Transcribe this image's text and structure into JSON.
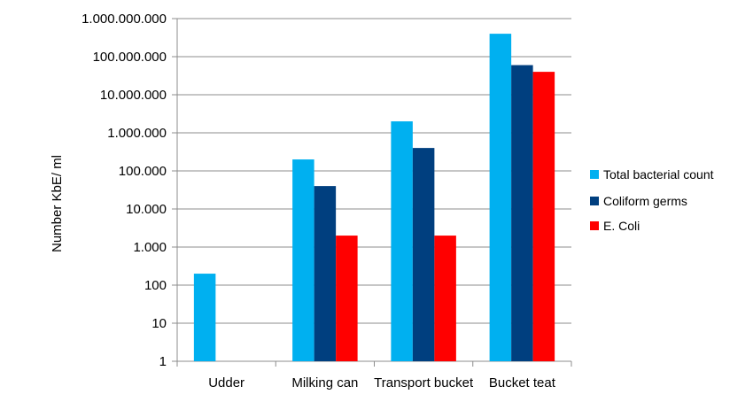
{
  "chart_data": {
    "type": "bar",
    "ylabel": "Number KbE/ ml",
    "yscale": "log",
    "ylim": [
      1,
      1000000000
    ],
    "grid": true,
    "legend_position": "right",
    "yticks": [
      1,
      10,
      100,
      1000,
      10000,
      100000,
      1000000,
      10000000,
      100000000,
      1000000000
    ],
    "ytick_labels": [
      "1",
      "10",
      "100",
      "1.000",
      "10.000",
      "100.000",
      "1.000.000",
      "10.000.000",
      "100.000.000",
      "1.000.000.000"
    ],
    "categories": [
      "Udder",
      "Milking can",
      "Transport bucket",
      "Bucket teat"
    ],
    "series": [
      {
        "name": "Total bacterial count",
        "color": "#00b0f0",
        "values": [
          200,
          200000,
          2000000,
          400000000
        ]
      },
      {
        "name": "Coliform germs",
        "color": "#003f7f",
        "values": [
          null,
          40000,
          400000,
          60000000
        ]
      },
      {
        "name": "E. Coli",
        "color": "#ff0000",
        "values": [
          null,
          2000,
          2000,
          40000000
        ]
      }
    ]
  }
}
